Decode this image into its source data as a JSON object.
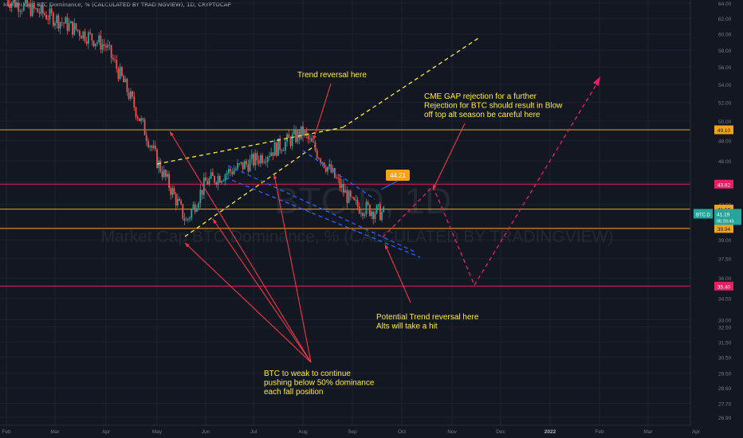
{
  "header": {
    "title": "Market Cap BTC Dominance, % (CALCULATED BY TRADINGVIEW), 1D, CRYPTOCAP"
  },
  "watermark": {
    "symbol": "BTC.D, 1D",
    "name": "Market Cap BTC Dominance, % (CALCULATED BY TRADINGVIEW)"
  },
  "colors": {
    "background": "#131722",
    "candle_up": "#26a69a",
    "candle_down": "#ef5350",
    "orange_level": "#f7a21b",
    "pink_level": "#e91e63",
    "annotation_text": "#ffeb3b",
    "arrow": "#f23645"
  },
  "chart_data": {
    "type": "candlestick",
    "title": "Market Cap BTC Dominance, % (CALCULATED BY TRADINGVIEW), 1D, CRYPTOCAP",
    "y_axis": {
      "scale": "log",
      "range": [
        26.4,
        65.0
      ],
      "ticks": [
        "64.00",
        "62.00",
        "60.00",
        "58.00",
        "56.00",
        "54.00",
        "52.00",
        "50.00",
        "48.00",
        "46.00",
        "44.00",
        "42.00",
        "40.00",
        "39.00",
        "37.50",
        "36.00",
        "34.50",
        "33.00",
        "32.50",
        "31.50",
        "30.50",
        "29.50",
        "28.60",
        "27.70",
        "26.90"
      ]
    },
    "x_axis": {
      "ticks": [
        "Feb",
        "Mar",
        "Apr",
        "May",
        "Jun",
        "Jul",
        "Aug",
        "Sep",
        "Oct",
        "Nov",
        "Dec",
        "2022",
        "Feb",
        "Mar",
        "Apr"
      ]
    },
    "price_path": [
      {
        "date": "Feb",
        "value": 64.5
      },
      {
        "date": "Mar",
        "value": 62.0
      },
      {
        "date": "Apr",
        "value": 58.5
      },
      {
        "date": "May",
        "value": 46.0
      },
      {
        "date": "May 19",
        "value": 40.5
      },
      {
        "date": "Jun",
        "value": 44.0
      },
      {
        "date": "Jul",
        "value": 46.0
      },
      {
        "date": "Aug",
        "value": 48.8
      },
      {
        "date": "Sep",
        "value": 42.0
      },
      {
        "date": "Sep 20",
        "value": 41.19
      }
    ],
    "horizontal_levels": [
      {
        "value": 49.1,
        "label": "49.10",
        "color": "#f7a21b"
      },
      {
        "value": 43.82,
        "label": "43.82",
        "color": "#e91e63"
      },
      {
        "value": 41.59,
        "label": "41.59",
        "color": "#f7a21b"
      },
      {
        "value": 39.94,
        "label": "39.94",
        "color": "#f7a21b"
      },
      {
        "value": 35.4,
        "label": "35.40",
        "color": "#e91e63"
      }
    ],
    "current_price": {
      "symbol": "BTC.D",
      "value": "41.19",
      "countdown": "06:20:43"
    },
    "callout_price": "44.21",
    "annotations": [
      "Trend reversal here",
      "CME GAP rejection for a further\nRejection for BTC should result in Blow\noff top alt season be careful here",
      "Potential Trend reversal here\nAlts will take a hit",
      "BTC to weak to continue\npushing below 50% dominance\neach fall position"
    ],
    "legend": "none",
    "grid": true
  }
}
